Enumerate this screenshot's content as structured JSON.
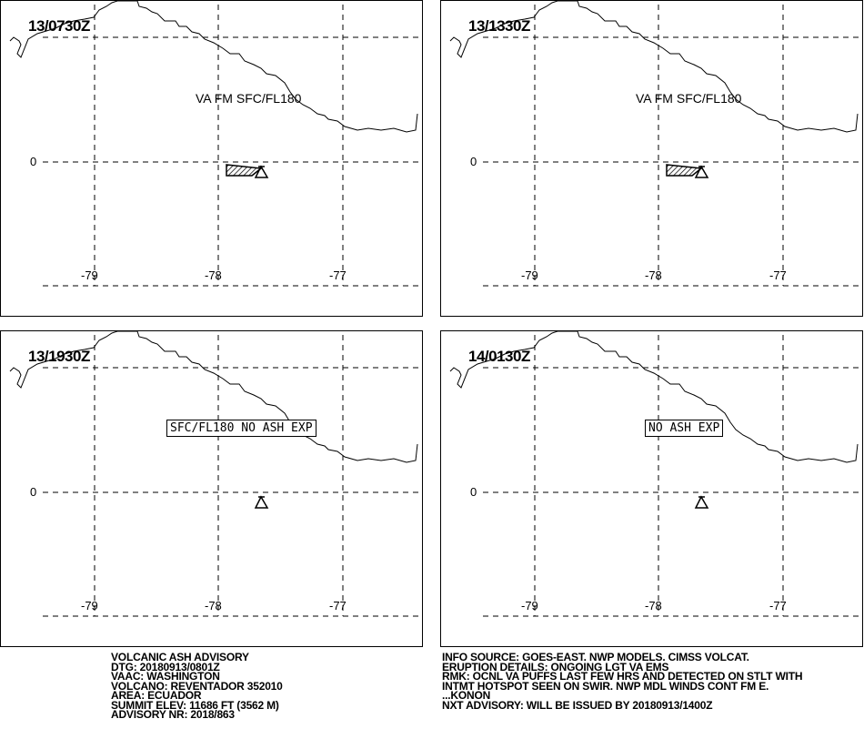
{
  "panels": [
    {
      "time": "13/0730Z",
      "label": "VA FM SFC/FL180",
      "label_boxed": false,
      "ash_area": true
    },
    {
      "time": "13/1330Z",
      "label": "VA FM SFC/FL180",
      "label_boxed": false,
      "ash_area": true
    },
    {
      "time": "13/1930Z",
      "label": "SFC/FL180 NO ASH EXP",
      "label_boxed": true,
      "ash_area": false
    },
    {
      "time": "14/0130Z",
      "label": "NO ASH EXP",
      "label_boxed": true,
      "ash_area": false
    }
  ],
  "axis": {
    "lat_label": "0",
    "lon_labels": [
      "-79",
      "-78",
      "-77"
    ]
  },
  "advisory_left": [
    "VOLCANIC ASH ADVISORY",
    "DTG: 20180913/0801Z",
    "VAAC: WASHINGTON",
    "VOLCANO: REVENTADOR 352010",
    "AREA: ECUADOR",
    "SUMMIT ELEV: 11686 FT (3562 M)",
    "ADVISORY NR: 2018/863"
  ],
  "advisory_right": [
    "INFO SOURCE: GOES-EAST. NWP MODELS. CIMSS VOLCAT.",
    "ERUPTION DETAILS: ONGOING LGT VA EMS",
    "RMK: OCNL VA PUFFS LAST FEW HRS AND DETECTED ON STLT WITH",
    "INTMT HOTSPOT SEEN ON SWIR. NWP MDL WINDS CONT FM E.",
    "...KONON",
    "NXT ADVISORY: WILL BE ISSUED BY 20180913/1400Z"
  ],
  "icons": {
    "volcano": "volcano-triangle-icon",
    "ash": "ash-polygon-hatched",
    "coastline": "coastline-line"
  }
}
